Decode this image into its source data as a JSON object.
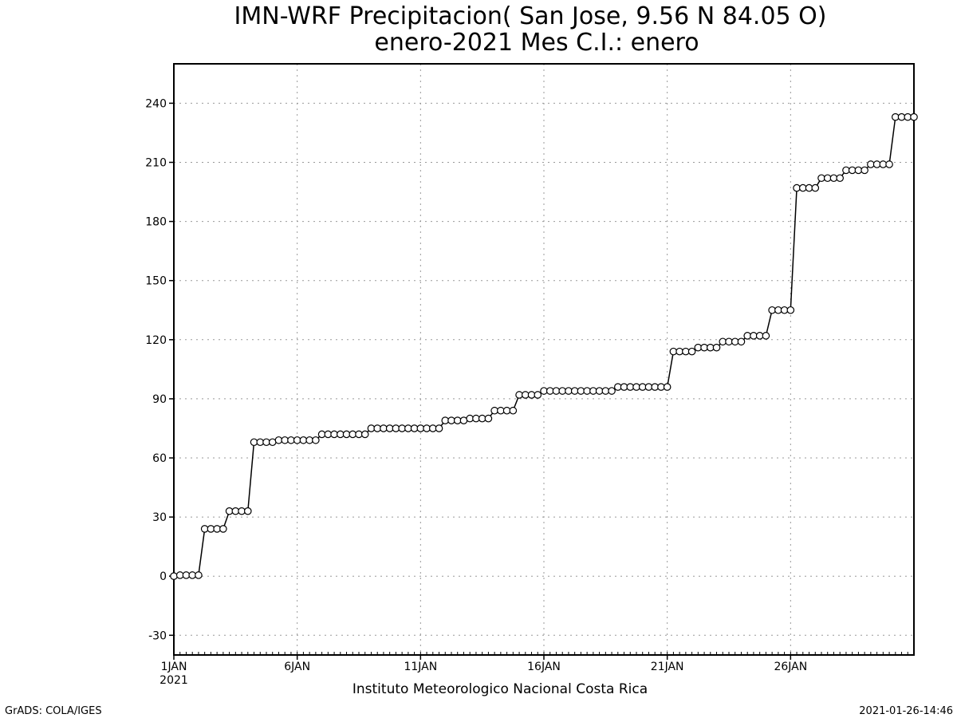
{
  "chart_data": {
    "type": "line",
    "title": "IMN-WRF  Precipitacion( San Jose, 9.56  N 84.05  O)",
    "subtitle": "enero-2021 Mes C.I.: enero",
    "xlabel": "Instituto Meteorologico Nacional Costa Rica",
    "ylabel": "",
    "x_start": "2021-01-01",
    "x_unit": "6h",
    "x_ticks": [
      {
        "label": "1JAN",
        "sub": "2021",
        "x": 0
      },
      {
        "label": "6JAN",
        "sub": "",
        "x": 20
      },
      {
        "label": "11JAN",
        "sub": "",
        "x": 40
      },
      {
        "label": "16JAN",
        "sub": "",
        "x": 60
      },
      {
        "label": "21JAN",
        "sub": "",
        "x": 80
      },
      {
        "label": "26JAN",
        "sub": "",
        "x": 100
      }
    ],
    "xlim": [
      0,
      120
    ],
    "ylim": [
      -40,
      260
    ],
    "y_ticks": [
      -30,
      0,
      30,
      60,
      90,
      120,
      150,
      180,
      210,
      240
    ],
    "grid": true,
    "marker": "open-circle",
    "series": [
      {
        "values": [
          0,
          0.5,
          0.5,
          0.5,
          0.5,
          24,
          24,
          24,
          24,
          33,
          33,
          33,
          33,
          68,
          68,
          68,
          68,
          69,
          69,
          69,
          69,
          69,
          69,
          69,
          72,
          72,
          72,
          72,
          72,
          72,
          72,
          72,
          75,
          75,
          75,
          75,
          75,
          75,
          75,
          75,
          75,
          75,
          75,
          75,
          79,
          79,
          79,
          79,
          80,
          80,
          80,
          80,
          84,
          84,
          84,
          84,
          92,
          92,
          92,
          92,
          94,
          94,
          94,
          94,
          94,
          94,
          94,
          94,
          94,
          94,
          94,
          94,
          96,
          96,
          96,
          96,
          96,
          96,
          96,
          96,
          96,
          114,
          114,
          114,
          114,
          116,
          116,
          116,
          116,
          119,
          119,
          119,
          119,
          122,
          122,
          122,
          122,
          135,
          135,
          135,
          135,
          197,
          197,
          197,
          197,
          202,
          202,
          202,
          202,
          206,
          206,
          206,
          206,
          209,
          209,
          209,
          209,
          233,
          233,
          233,
          233
        ]
      }
    ]
  },
  "footer": {
    "left": "GrADS: COLA/IGES",
    "right": "2021-01-26-14:46"
  },
  "colors": {
    "line": "#000000",
    "grid": "#999999",
    "background": "#ffffff"
  }
}
